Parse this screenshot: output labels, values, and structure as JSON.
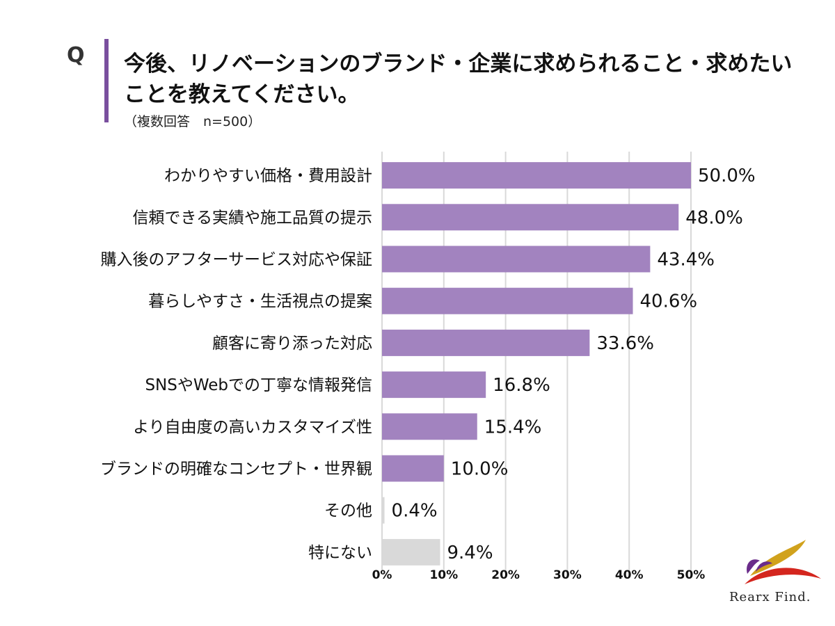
{
  "question_mark": "Q",
  "title": "今後、リノベーションのブランド・企業に求められること・求めたいことを教えてください。",
  "subtitle": "（複数回答　n=500）",
  "colors": {
    "accent": "#7a4f9e",
    "bar": "#a283bf",
    "bar_other": "#d9d9d9",
    "grid": "#d9d9d9"
  },
  "chart_data": {
    "type": "bar",
    "orientation": "horizontal",
    "title": "今後、リノベーションのブランド・企業に求められること・求めたいことを教えてください。",
    "categories": [
      "わかりやすい価格・費用設計",
      "信頼できる実績や施工品質の提示",
      "購入後のアフターサービス対応や保証",
      "暮らしやすさ・生活視点の提案",
      "顧客に寄り添った対応",
      "SNSやWebでの丁寧な情報発信",
      "より自由度の高いカスタマイズ性",
      "ブランドの明確なコンセプト・世界観",
      "その他",
      "特にない"
    ],
    "values": [
      50.0,
      48.0,
      43.4,
      40.6,
      33.6,
      16.8,
      15.4,
      10.0,
      0.4,
      9.4
    ],
    "value_labels": [
      "50.0%",
      "48.0%",
      "43.4%",
      "40.6%",
      "33.6%",
      "16.8%",
      "15.4%",
      "10.0%",
      "0.4%",
      "9.4%"
    ],
    "highlight": [
      true,
      true,
      true,
      true,
      true,
      true,
      true,
      true,
      false,
      false
    ],
    "xlim": [
      0,
      50
    ],
    "ticks": [
      0,
      10,
      20,
      30,
      40,
      50
    ],
    "tick_labels": [
      "0%",
      "10%",
      "20%",
      "30%",
      "40%",
      "50%"
    ],
    "grid": true,
    "xlabel": "",
    "ylabel": ""
  },
  "logo": {
    "text": "Rearx Find."
  }
}
